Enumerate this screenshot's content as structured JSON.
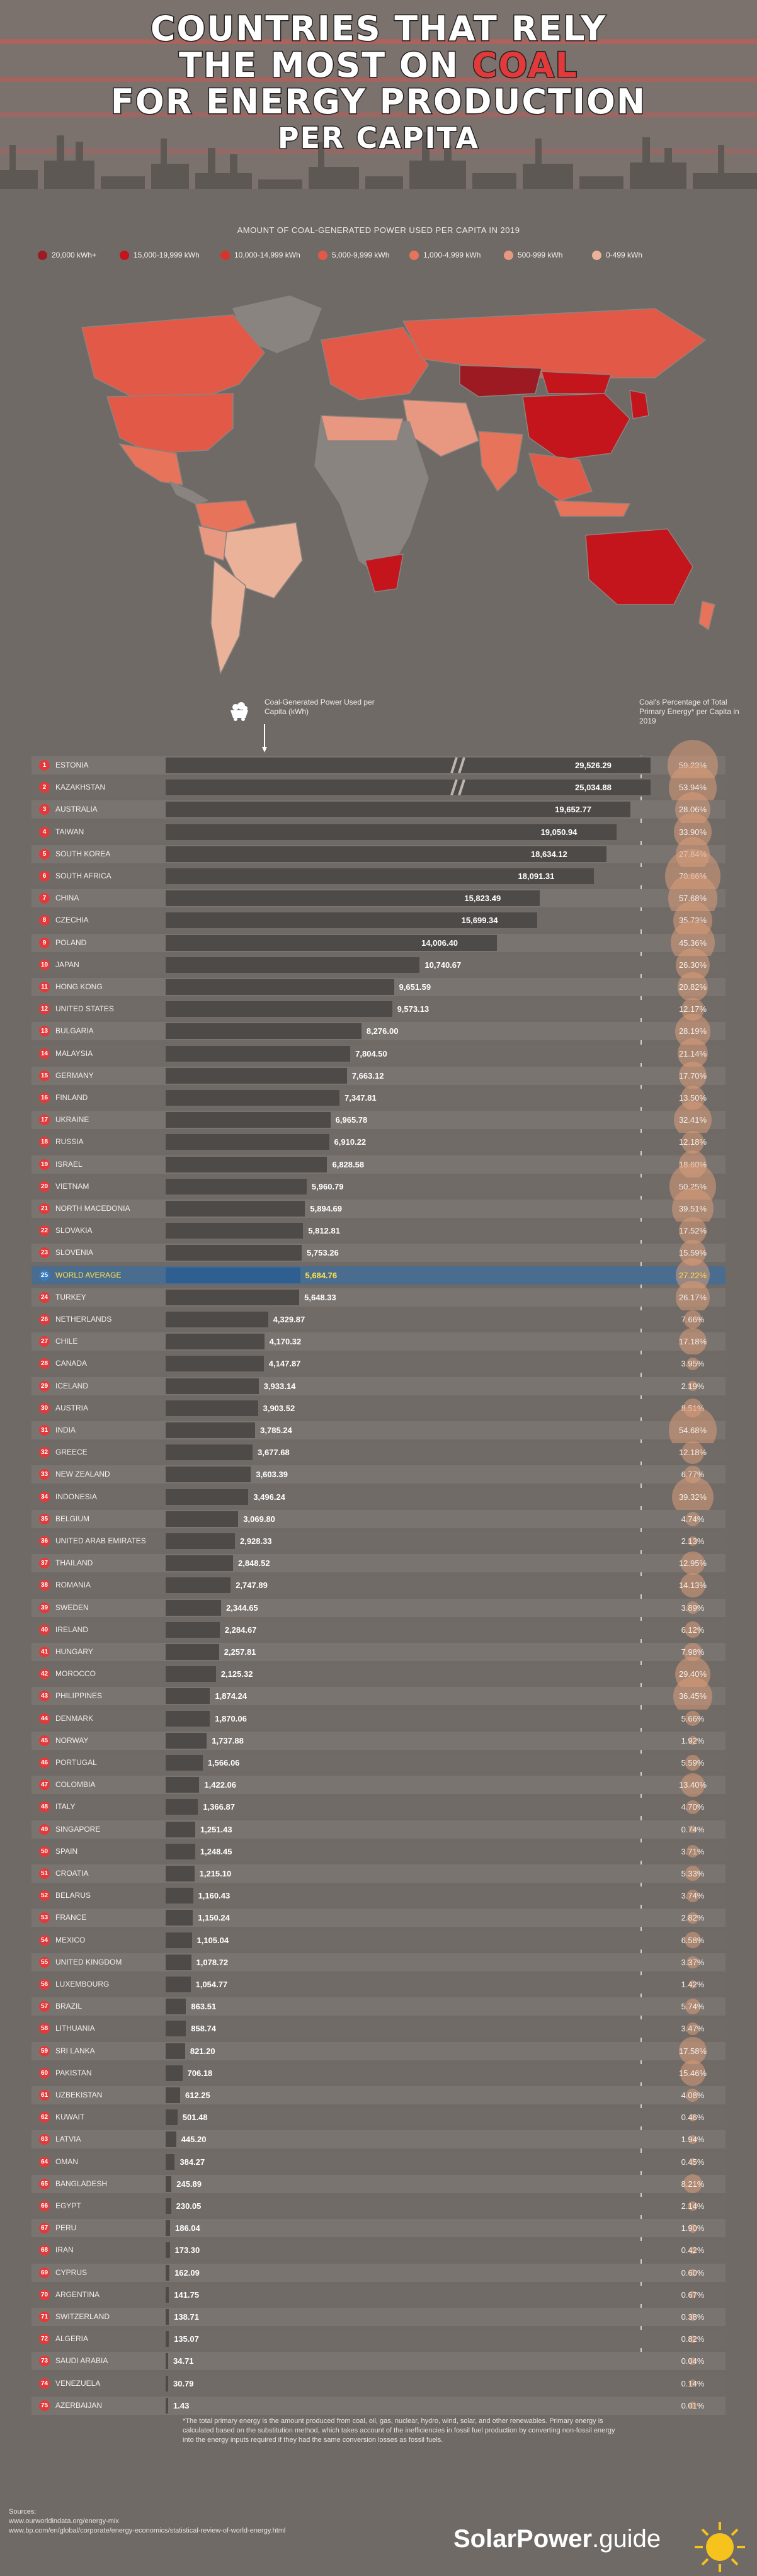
{
  "header": {
    "title_lines": [
      "COUNTRIES THAT RELY",
      "THE MOST ON ",
      "COAL",
      "FOR ENERGY PRODUCTION",
      "PER CAPITA"
    ]
  },
  "legend": {
    "title": "AMOUNT OF COAL-GENERATED POWER USED PER CAPITA IN 2019",
    "items": [
      {
        "label": "20,000 kWh+",
        "color": "#9e1a22"
      },
      {
        "label": "15,000-19,999 kWh",
        "color": "#c4141c"
      },
      {
        "label": "10,000-14,999 kWh",
        "color": "#d8342d"
      },
      {
        "label": "5,000-9,999 kWh",
        "color": "#e25a47"
      },
      {
        "label": "1,000-4,999 kWh",
        "color": "#e8735b"
      },
      {
        "label": "500-999 kWh",
        "color": "#e89880"
      },
      {
        "label": "0-499 kWh",
        "color": "#ebb29a"
      }
    ]
  },
  "columns": {
    "left": "Coal-Generated Power Used per Capita (kWh)",
    "right": "Coal's Percentage of Total Primary Energy* per Capita in 2019"
  },
  "chart_data": {
    "type": "bar",
    "title": "COUNTRIES THAT RELY THE MOST ON COAL FOR ENERGY PRODUCTION PER CAPITA",
    "xlabel": "Coal-Generated Power Used per Capita (kWh)",
    "ylabel": "",
    "categories": [
      "ESTONIA",
      "KAZAKHSTAN",
      "AUSTRALIA",
      "TAIWAN",
      "SOUTH KOREA",
      "SOUTH AFRICA",
      "CHINA",
      "CZECHIA",
      "POLAND",
      "JAPAN",
      "HONG KONG",
      "UNITED STATES",
      "BULGARIA",
      "MALAYSIA",
      "GERMANY",
      "FINLAND",
      "UKRAINE",
      "RUSSIA",
      "ISRAEL",
      "VIETNAM",
      "NORTH MACEDONIA",
      "SLOVAKIA",
      "SLOVENIA",
      "WORLD AVERAGE",
      "TURKEY",
      "NETHERLANDS",
      "CHILE",
      "CANADA",
      "ICELAND",
      "AUSTRIA",
      "INDIA",
      "GREECE",
      "NEW ZEALAND",
      "INDONESIA",
      "BELGIUM",
      "UNITED ARAB EMIRATES",
      "THAILAND",
      "ROMANIA",
      "SWEDEN",
      "IRELAND",
      "HUNGARY",
      "MOROCCO",
      "PHILIPPINES",
      "DENMARK",
      "NORWAY",
      "PORTUGAL",
      "COLOMBIA",
      "ITALY",
      "SINGAPORE",
      "SPAIN",
      "CROATIA",
      "BELARUS",
      "FRANCE",
      "MEXICO",
      "UNITED KINGDOM",
      "LUXEMBOURG",
      "BRAZIL",
      "LITHUANIA",
      "SRI LANKA",
      "PAKISTAN",
      "UZBEKISTAN",
      "KUWAIT",
      "LATVIA",
      "OMAN",
      "BANGLADESH",
      "EGYPT",
      "PERU",
      "IRAN",
      "CYPRUS",
      "ARGENTINA",
      "SWITZERLAND",
      "ALGERIA",
      "SAUDI ARABIA",
      "VENEZUELA",
      "AZERBAIJAN"
    ],
    "ranks": [
      "1",
      "2",
      "3",
      "4",
      "5",
      "6",
      "7",
      "8",
      "9",
      "10",
      "11",
      "12",
      "13",
      "14",
      "15",
      "16",
      "17",
      "18",
      "19",
      "20",
      "21",
      "22",
      "23",
      "25",
      "24",
      "26",
      "27",
      "28",
      "29",
      "30",
      "31",
      "32",
      "33",
      "34",
      "35",
      "36",
      "37",
      "38",
      "39",
      "40",
      "41",
      "42",
      "43",
      "44",
      "45",
      "46",
      "47",
      "48",
      "49",
      "50",
      "51",
      "52",
      "53",
      "54",
      "55",
      "56",
      "57",
      "58",
      "59",
      "60",
      "61",
      "62",
      "63",
      "64",
      "65",
      "66",
      "67",
      "68",
      "69",
      "70",
      "71",
      "72",
      "73",
      "74",
      "75"
    ],
    "series": [
      {
        "name": "Coal-Generated Power Used per Capita (kWh)",
        "values": [
          29526.29,
          25034.88,
          19652.77,
          19050.94,
          18634.12,
          18091.31,
          15823.49,
          15699.34,
          14006.4,
          10740.67,
          9651.59,
          9573.13,
          8276.0,
          7804.5,
          7663.12,
          7347.81,
          6965.78,
          6910.22,
          6828.58,
          5960.79,
          5894.69,
          5812.81,
          5753.26,
          5684.76,
          5648.33,
          4329.87,
          4170.32,
          4147.87,
          3933.14,
          3903.52,
          3785.24,
          3677.68,
          3603.39,
          3496.24,
          3069.8,
          2928.33,
          2848.52,
          2747.89,
          2344.65,
          2284.67,
          2257.81,
          2125.32,
          1874.24,
          1870.06,
          1737.88,
          1566.06,
          1422.06,
          1366.87,
          1251.43,
          1248.45,
          1215.1,
          1160.43,
          1150.24,
          1105.04,
          1078.72,
          1054.77,
          863.51,
          858.74,
          821.2,
          706.18,
          612.25,
          501.48,
          445.2,
          384.27,
          245.89,
          230.05,
          186.04,
          173.3,
          162.09,
          141.75,
          138.71,
          135.07,
          34.71,
          30.79,
          1.43
        ],
        "labels": [
          "29,526.29",
          "25,034.88",
          "19,652.77",
          "19,050.94",
          "18,634.12",
          "18,091.31",
          "15,823.49",
          "15,699.34",
          "14,006.40",
          "10,740.67",
          "9,651.59",
          "9,573.13",
          "8,276.00",
          "7,804.50",
          "7,663.12",
          "7,347.81",
          "6,965.78",
          "6,910.22",
          "6,828.58",
          "5,960.79",
          "5,894.69",
          "5,812.81",
          "5,753.26",
          "5,684.76",
          "5,648.33",
          "4,329.87",
          "4,170.32",
          "4,147.87",
          "3,933.14",
          "3,903.52",
          "3,785.24",
          "3,677.68",
          "3,603.39",
          "3,496.24",
          "3,069.80",
          "2,928.33",
          "2,848.52",
          "2,747.89",
          "2,344.65",
          "2,284.67",
          "2,257.81",
          "2,125.32",
          "1,874.24",
          "1,870.06",
          "1,737.88",
          "1,566.06",
          "1,422.06",
          "1,366.87",
          "1,251.43",
          "1,248.45",
          "1,215.10",
          "1,160.43",
          "1,150.24",
          "1,105.04",
          "1,078.72",
          "1,054.77",
          "863.51",
          "858.74",
          "821.20",
          "706.18",
          "612.25",
          "501.48",
          "445.20",
          "384.27",
          "245.89",
          "230.05",
          "186.04",
          "173.30",
          "162.09",
          "141.75",
          "138.71",
          "135.07",
          "34.71",
          "30.79",
          "1.43"
        ]
      },
      {
        "name": "Coal's Percentage of Total Primary Energy* per Capita in 2019",
        "values": [
          59.23,
          53.94,
          28.06,
          33.9,
          27.84,
          70.66,
          57.68,
          35.73,
          45.36,
          26.3,
          20.82,
          12.17,
          28.19,
          21.14,
          17.7,
          13.5,
          32.41,
          12.18,
          18.6,
          50.25,
          39.51,
          17.52,
          15.59,
          27.22,
          26.17,
          7.66,
          17.18,
          3.95,
          2.19,
          8.51,
          54.68,
          12.18,
          6.77,
          39.32,
          4.74,
          2.13,
          12.95,
          14.13,
          3.89,
          6.12,
          7.98,
          29.4,
          36.45,
          5.66,
          1.92,
          5.59,
          13.4,
          4.7,
          0.74,
          3.71,
          5.33,
          3.74,
          2.82,
          6.58,
          3.37,
          1.42,
          5.74,
          3.47,
          17.58,
          15.46,
          4.08,
          0.46,
          1.94,
          0.45,
          8.21,
          2.14,
          1.9,
          0.42,
          0.6,
          0.67,
          0.38,
          0.82,
          0.04,
          0.14,
          0.01
        ],
        "labels": [
          "59.23%",
          "53.94%",
          "28.06%",
          "33.90%",
          "27.84%",
          "70.66%",
          "57.68%",
          "35.73%",
          "45.36%",
          "26.30%",
          "20.82%",
          "12.17%",
          "28.19%",
          "21.14%",
          "17.70%",
          "13.50%",
          "32.41%",
          "12.18%",
          "18.60%",
          "50.25%",
          "39.51%",
          "17.52%",
          "15.59%",
          "27.22%",
          "26.17%",
          "7.66%",
          "17.18%",
          "3.95%",
          "2.19%",
          "8.51%",
          "54.68%",
          "12.18%",
          "6.77%",
          "39.32%",
          "4.74%",
          "2.13%",
          "12.95%",
          "14.13%",
          "3.89%",
          "6.12%",
          "7.98%",
          "29.40%",
          "36.45%",
          "5.66%",
          "1.92%",
          "5.59%",
          "13.40%",
          "4.70%",
          "0.74%",
          "3.71%",
          "5.33%",
          "3.74%",
          "2.82%",
          "6.58%",
          "3.37%",
          "1.42%",
          "5.74%",
          "3.47%",
          "17.58%",
          "15.46%",
          "4.08%",
          "0.46%",
          "1.94%",
          "0.45%",
          "8.21%",
          "2.14%",
          "1.90%",
          "0.42%",
          "0.60%",
          "0.67%",
          "0.38%",
          "0.82%",
          "0.04%",
          "0.14%",
          "0.01%"
        ]
      }
    ],
    "highlight": "WORLD AVERAGE",
    "grid": false
  },
  "footnote": "*The total primary energy is the amount produced from coal, oil, gas, nuclear, hydro, wind, solar, and other renewables. Primary energy is calculated based on the substitution method, which takes account of the inefficiencies in fossil fuel production by converting non-fossil energy into the energy inputs required if they had the same conversion losses as fossil fuels.",
  "sources": {
    "label": "Sources:",
    "lines": [
      "www.ourworldindata.org/energy-mix",
      "www.bp.com/en/global/corporate/energy-economics/statistical-review-of-world-energy.html"
    ]
  },
  "brand": {
    "name": "SolarPower",
    "suffix": ".guide"
  },
  "colors": {
    "accent": "#e23a3a",
    "bar": "#4e4a47",
    "highlight_band": "#4a6d8f",
    "highlight_text": "#ffe04a",
    "pct_bubble": "#d99a78"
  }
}
